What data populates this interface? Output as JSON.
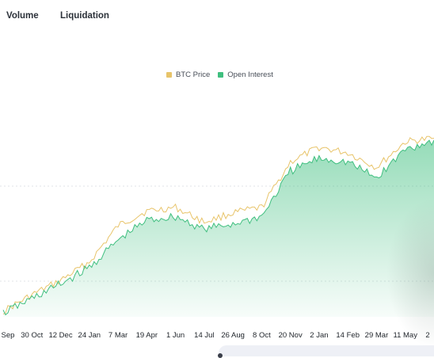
{
  "tabs": {
    "volume": "Volume",
    "liquidation": "Liquidation"
  },
  "legend": {
    "price_label": "BTC Price",
    "oi_label": "Open Interest",
    "price_color": "#e8c46a",
    "oi_color": "#3fbf7f"
  },
  "chart_data": {
    "type": "area",
    "grid": "faint dashed horizontal lines",
    "legend_position": "top-center",
    "x_tick_labels": [
      "Sep",
      "30 Oct",
      "12 Dec",
      "24 Jan",
      "7 Mar",
      "19 Apr",
      "1 Jun",
      "14 Jul",
      "26 Aug",
      "8 Oct",
      "20 Nov",
      "2 Jan",
      "14 Feb",
      "29 Mar",
      "11 May",
      "2"
    ],
    "series": [
      {
        "name": "BTC Price",
        "render": "line",
        "color": "#e8c46a",
        "values": [
          [
            "Sep",
            3
          ],
          [
            "30 Oct",
            12
          ],
          [
            "12 Dec",
            20
          ],
          [
            "24 Jan",
            30
          ],
          [
            "7 Mar",
            50
          ],
          [
            "19 Apr",
            58
          ],
          [
            "1 Jun",
            60
          ],
          [
            "14 Jul",
            52
          ],
          [
            "26 Aug",
            57
          ],
          [
            "8 Oct",
            60
          ],
          [
            "20 Nov",
            85
          ],
          [
            "2 Jan",
            93
          ],
          [
            "14 Feb",
            90
          ],
          [
            "29 Mar",
            82
          ],
          [
            "11 May",
            96
          ],
          [
            "2",
            98
          ]
        ]
      },
      {
        "name": "Open Interest",
        "render": "area",
        "color": "#3fbf7f",
        "values": [
          [
            "Sep",
            2
          ],
          [
            "30 Oct",
            10
          ],
          [
            "12 Dec",
            18
          ],
          [
            "24 Jan",
            27
          ],
          [
            "7 Mar",
            42
          ],
          [
            "19 Apr",
            53
          ],
          [
            "1 Jun",
            55
          ],
          [
            "14 Jul",
            48
          ],
          [
            "26 Aug",
            51
          ],
          [
            "8 Oct",
            55
          ],
          [
            "20 Nov",
            80
          ],
          [
            "2 Jan",
            87
          ],
          [
            "14 Feb",
            85
          ],
          [
            "29 Mar",
            76
          ],
          [
            "11 May",
            92
          ],
          [
            "2",
            97
          ]
        ]
      }
    ]
  }
}
